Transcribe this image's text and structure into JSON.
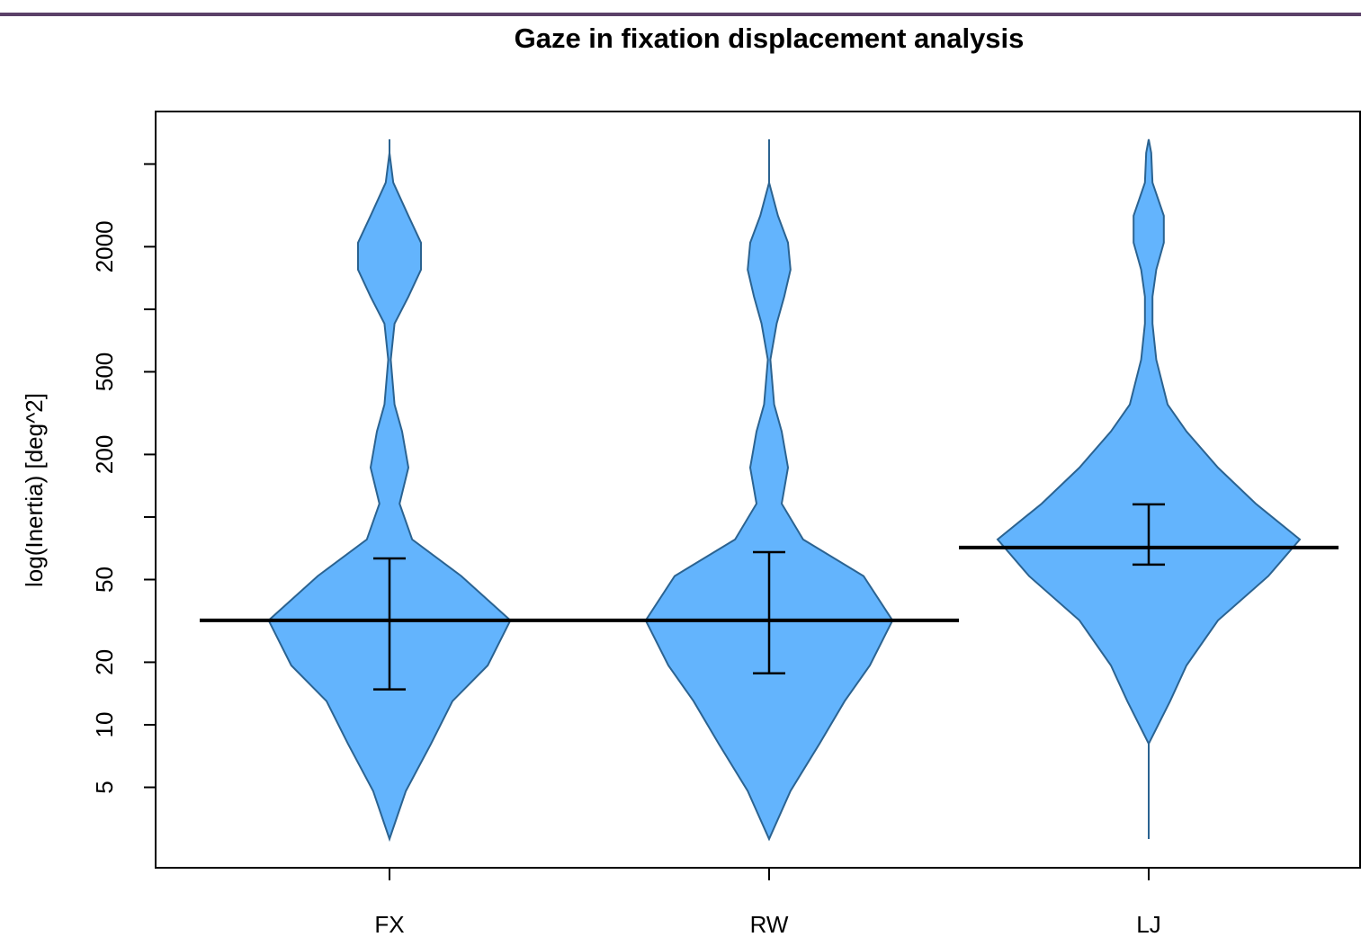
{
  "chart_data": {
    "type": "violin",
    "title": "Gaze in fixation displacement analysis",
    "y_label": "log(Inertia) [deg^2]",
    "categories": [
      "FX",
      "RW",
      "LJ"
    ],
    "log_y": true,
    "ylim": [
      2.05,
      8950
    ],
    "yticks": [
      5,
      10,
      20,
      50,
      {
        "value": 100,
        "label": null
      },
      200,
      500,
      {
        "value": 1000,
        "label": null
      },
      2000,
      {
        "value": 5000,
        "label": null
      }
    ],
    "color": "#63b4fd",
    "edge_color": "#2b6391",
    "mean_color": "#000000",
    "density_y": [
      6580,
      5660,
      4070,
      2820,
      2090,
      1550,
      1150,
      853,
      572,
      348,
      258,
      173,
      116,
      78,
      52,
      31.8,
      19.3,
      13.0,
      8.1,
      4.8,
      2.82
    ],
    "violins": [
      {
        "density": [
          0,
          0,
          0.03,
          0.15,
          0.25,
          0.25,
          0.15,
          0.04,
          0.01,
          0.04,
          0.1,
          0.15,
          0.08,
          0.18,
          0.57,
          0.96,
          0.78,
          0.5,
          0.33,
          0.13,
          0
        ],
        "mean": 31.8,
        "error_low": 14.8,
        "error_high": 63.2
      },
      {
        "density": [
          0,
          0,
          0,
          0.07,
          0.15,
          0.17,
          0.12,
          0.06,
          0.01,
          0.04,
          0.1,
          0.15,
          0.1,
          0.27,
          0.75,
          0.98,
          0.8,
          0.6,
          0.4,
          0.17,
          0
        ],
        "mean": 31.8,
        "error_low": 17.7,
        "error_high": 67.8
      },
      {
        "density": [
          0,
          0.02,
          0.03,
          0.12,
          0.12,
          0.06,
          0.03,
          0.03,
          0.06,
          0.15,
          0.3,
          0.55,
          0.85,
          1.2,
          0.95,
          0.55,
          0.3,
          0.17,
          0,
          0,
          0
        ],
        "mean": 71.3,
        "error_low": 59,
        "error_high": 115
      }
    ]
  }
}
